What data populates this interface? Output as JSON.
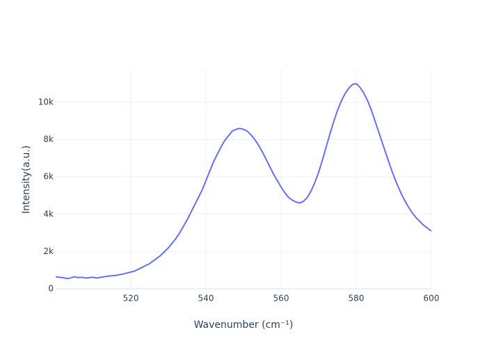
{
  "chart_data": {
    "type": "line",
    "xlabel": "Wavenumber (cm⁻¹)",
    "ylabel": "Intensity(a.u.)",
    "x": [
      500,
      501,
      502,
      503,
      504,
      505,
      506,
      507,
      508,
      509,
      510,
      511,
      512,
      513,
      514,
      515,
      516,
      517,
      518,
      519,
      520,
      521,
      522,
      523,
      524,
      525,
      526,
      527,
      528,
      529,
      530,
      531,
      532,
      533,
      534,
      535,
      536,
      537,
      538,
      539,
      540,
      541,
      542,
      543,
      544,
      545,
      546,
      547,
      548,
      549,
      550,
      551,
      552,
      553,
      554,
      555,
      556,
      557,
      558,
      559,
      560,
      561,
      562,
      563,
      564,
      565,
      566,
      567,
      568,
      569,
      570,
      571,
      572,
      573,
      574,
      575,
      576,
      577,
      578,
      579,
      580,
      581,
      582,
      583,
      584,
      585,
      586,
      587,
      588,
      589,
      590,
      591,
      592,
      593,
      594,
      595,
      596,
      597,
      598,
      599,
      600
    ],
    "series": [
      {
        "name": "Intensity",
        "color": "#636efa",
        "values": [
          650,
          620,
          600,
          550,
          580,
          650,
          600,
          620,
          580,
          600,
          620,
          580,
          620,
          650,
          680,
          700,
          720,
          760,
          800,
          850,
          900,
          950,
          1050,
          1150,
          1250,
          1350,
          1500,
          1650,
          1800,
          2000,
          2200,
          2450,
          2700,
          3000,
          3350,
          3700,
          4100,
          4500,
          4900,
          5300,
          5800,
          6300,
          6800,
          7200,
          7600,
          7950,
          8200,
          8450,
          8550,
          8600,
          8550,
          8450,
          8250,
          8000,
          7700,
          7350,
          6950,
          6550,
          6150,
          5800,
          5450,
          5150,
          4900,
          4750,
          4650,
          4600,
          4700,
          4900,
          5250,
          5700,
          6250,
          6900,
          7600,
          8300,
          8950,
          9550,
          10050,
          10450,
          10750,
          10950,
          11000,
          10800,
          10500,
          10100,
          9600,
          9000,
          8400,
          7800,
          7200,
          6600,
          6050,
          5550,
          5100,
          4700,
          4350,
          4050,
          3800,
          3600,
          3400,
          3250,
          3100
        ]
      }
    ],
    "xlim": [
      500,
      600
    ],
    "xticks": [
      520,
      540,
      560,
      580,
      600
    ],
    "ylim": [
      0,
      11750
    ],
    "yticks": [
      0,
      {
        "value": 2000,
        "label": "2k"
      },
      {
        "value": 4000,
        "label": "4k"
      },
      {
        "value": 6000,
        "label": "6k"
      },
      {
        "value": 8000,
        "label": "8k"
      },
      {
        "value": 10000,
        "label": "10k"
      }
    ],
    "grid": true
  }
}
